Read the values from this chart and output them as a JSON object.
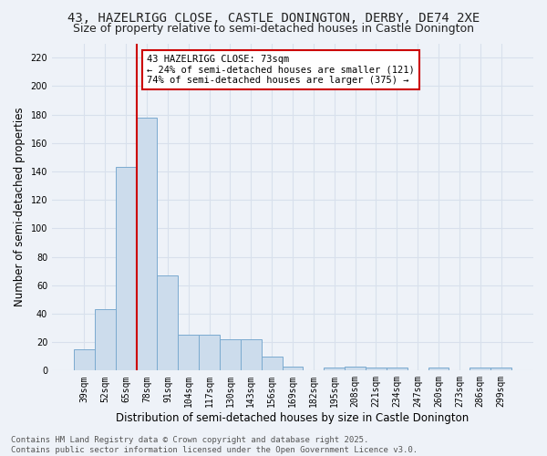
{
  "title": "43, HAZELRIGG CLOSE, CASTLE DONINGTON, DERBY, DE74 2XE",
  "subtitle": "Size of property relative to semi-detached houses in Castle Donington",
  "xlabel": "Distribution of semi-detached houses by size in Castle Donington",
  "ylabel": "Number of semi-detached properties",
  "categories": [
    "39sqm",
    "52sqm",
    "65sqm",
    "78sqm",
    "91sqm",
    "104sqm",
    "117sqm",
    "130sqm",
    "143sqm",
    "156sqm",
    "169sqm",
    "182sqm",
    "195sqm",
    "208sqm",
    "221sqm",
    "234sqm",
    "247sqm",
    "260sqm",
    "273sqm",
    "286sqm",
    "299sqm"
  ],
  "values": [
    15,
    43,
    143,
    178,
    67,
    25,
    25,
    22,
    22,
    10,
    3,
    0,
    2,
    3,
    2,
    2,
    0,
    2,
    0,
    2,
    2
  ],
  "bar_color": "#ccdcec",
  "bar_edge_color": "#7aaacf",
  "vline_color": "#cc0000",
  "vline_x_index": 2.5,
  "annotation_text": "43 HAZELRIGG CLOSE: 73sqm\n← 24% of semi-detached houses are smaller (121)\n74% of semi-detached houses are larger (375) →",
  "annotation_box_color": "#ffffff",
  "annotation_box_edge": "#cc0000",
  "ylim": [
    0,
    230
  ],
  "yticks": [
    0,
    20,
    40,
    60,
    80,
    100,
    120,
    140,
    160,
    180,
    200,
    220
  ],
  "footnote": "Contains HM Land Registry data © Crown copyright and database right 2025.\nContains public sector information licensed under the Open Government Licence v3.0.",
  "background_color": "#eef2f8",
  "grid_color": "#d8e0ec",
  "title_fontsize": 10,
  "subtitle_fontsize": 9,
  "label_fontsize": 8.5,
  "tick_fontsize": 7,
  "annot_fontsize": 7.5,
  "footnote_fontsize": 6.5
}
